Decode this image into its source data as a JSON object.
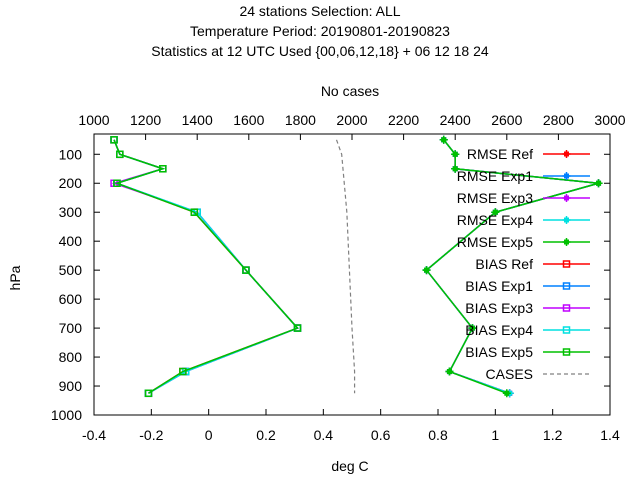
{
  "chart_data": {
    "type": "line",
    "title_lines": [
      "24 stations Selection: ALL",
      "Temperature  Period: 20190801-20190823",
      "Statistics at 12 UTC  Used {00,06,12,18} + 06 12 18 24"
    ],
    "x2label": "No cases",
    "xlabel": "deg C",
    "ylabel": "hPa",
    "xlim": [
      -0.4,
      1.4
    ],
    "x2lim": [
      1000,
      3000
    ],
    "ylim": [
      1000,
      30
    ],
    "y_reversed": true,
    "grid": false,
    "legend_position": "top-right",
    "x_ticks": [
      "-0.4",
      "-0.2",
      "0",
      "0.2",
      "0.4",
      "0.6",
      "0.8",
      "1",
      "1.2",
      "1.4"
    ],
    "x2_ticks": [
      "1000",
      "1200",
      "1400",
      "1600",
      "1800",
      "2000",
      "2200",
      "2400",
      "2600",
      "2800",
      "3000"
    ],
    "y_ticks": [
      "100",
      "200",
      "300",
      "400",
      "500",
      "600",
      "700",
      "800",
      "900",
      "1000"
    ],
    "levels": [
      50,
      100,
      150,
      200,
      300,
      500,
      700,
      850,
      925
    ],
    "series": [
      {
        "name": "RMSE Ref",
        "color": "#ff0000",
        "marker": "plus-filled",
        "axis": "x",
        "values": [
          0.82,
          0.86,
          0.86,
          1.36,
          1.0,
          0.76,
          0.92,
          0.84,
          1.05
        ]
      },
      {
        "name": "RMSE Exp1",
        "color": "#0080ff",
        "marker": "plus-filled",
        "axis": "x",
        "values": [
          0.82,
          0.86,
          0.86,
          1.36,
          1.0,
          0.76,
          0.92,
          0.84,
          1.05
        ]
      },
      {
        "name": "RMSE Exp3",
        "color": "#c000ff",
        "marker": "plus-filled",
        "axis": "x",
        "values": [
          0.82,
          0.86,
          0.86,
          1.36,
          1.0,
          0.76,
          0.92,
          0.84,
          1.05
        ]
      },
      {
        "name": "RMSE Exp4",
        "color": "#00e0e0",
        "marker": "plus-filled",
        "axis": "x",
        "values": [
          0.82,
          0.86,
          0.86,
          1.36,
          1.0,
          0.76,
          0.92,
          0.84,
          1.05
        ]
      },
      {
        "name": "RMSE Exp5",
        "color": "#00c000",
        "marker": "plus-filled",
        "axis": "x",
        "values": [
          0.82,
          0.86,
          0.86,
          1.36,
          1.0,
          0.76,
          0.92,
          0.84,
          1.04
        ]
      },
      {
        "name": "BIAS Ref",
        "color": "#ff0000",
        "marker": "square",
        "axis": "x",
        "values": [
          -0.33,
          -0.31,
          -0.16,
          -0.32,
          -0.05,
          0.13,
          0.31,
          -0.09,
          -0.21
        ]
      },
      {
        "name": "BIAS Exp1",
        "color": "#0080ff",
        "marker": "square",
        "axis": "x",
        "values": [
          -0.33,
          -0.31,
          -0.16,
          -0.32,
          -0.04,
          0.13,
          0.31,
          -0.08,
          -0.21
        ]
      },
      {
        "name": "BIAS Exp3",
        "color": "#c000ff",
        "marker": "square",
        "axis": "x",
        "values": [
          -0.33,
          -0.31,
          -0.16,
          -0.33,
          -0.04,
          0.13,
          0.31,
          -0.08,
          -0.21
        ]
      },
      {
        "name": "BIAS Exp4",
        "color": "#00e0e0",
        "marker": "square",
        "axis": "x",
        "values": [
          -0.33,
          -0.31,
          -0.16,
          -0.32,
          -0.04,
          0.13,
          0.31,
          -0.08,
          -0.21
        ]
      },
      {
        "name": "BIAS Exp5",
        "color": "#00c000",
        "marker": "square",
        "axis": "x",
        "values": [
          -0.33,
          -0.31,
          -0.16,
          -0.32,
          -0.05,
          0.13,
          0.31,
          -0.09,
          -0.21
        ]
      },
      {
        "name": "CASES",
        "color": "#808080",
        "marker": "none",
        "dashed": true,
        "axis": "x2",
        "levels": [
          50,
          100,
          150,
          200,
          300,
          500,
          700,
          850,
          925
        ],
        "values": [
          1940,
          1960,
          1965,
          1970,
          1980,
          1990,
          2000,
          2010,
          2010
        ]
      }
    ]
  }
}
